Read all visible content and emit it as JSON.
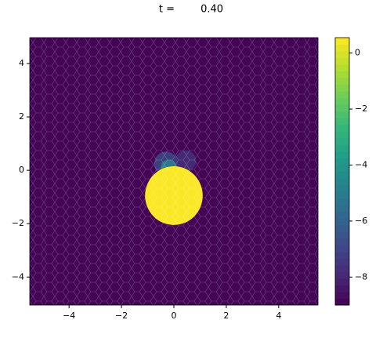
{
  "chart_data": {
    "type": "mesh",
    "title": "t =        0.40",
    "xlim": [
      -5.5,
      5.5
    ],
    "ylim": [
      -5.05,
      4.97
    ],
    "xticks": [
      {
        "value": -4,
        "label": "−4"
      },
      {
        "value": -2,
        "label": "−2"
      },
      0,
      2,
      4
    ],
    "yticks": [
      {
        "value": -4,
        "label": "−4"
      },
      {
        "value": -2,
        "label": "−2"
      },
      0,
      2,
      4
    ],
    "colormap": "viridis",
    "clim": [
      -9,
      0.55
    ],
    "cticks": [
      0,
      {
        "value": -2,
        "label": "−2"
      },
      {
        "value": -4,
        "label": "−4"
      },
      {
        "value": -6,
        "label": "−6"
      },
      {
        "value": -8,
        "label": "−8"
      }
    ],
    "background": -8.9,
    "regions": [
      {
        "cx": -0.3,
        "cy": 0.25,
        "r": 0.45,
        "value": -6.5
      },
      {
        "cx": 0.45,
        "cy": 0.35,
        "r": 0.4,
        "value": -7.5
      },
      {
        "cx": -0.2,
        "cy": 0.1,
        "r": 0.3,
        "value": -4.5
      },
      {
        "cx": 0.0,
        "cy": -0.95,
        "r": 1.1,
        "value": 0.5
      }
    ]
  }
}
